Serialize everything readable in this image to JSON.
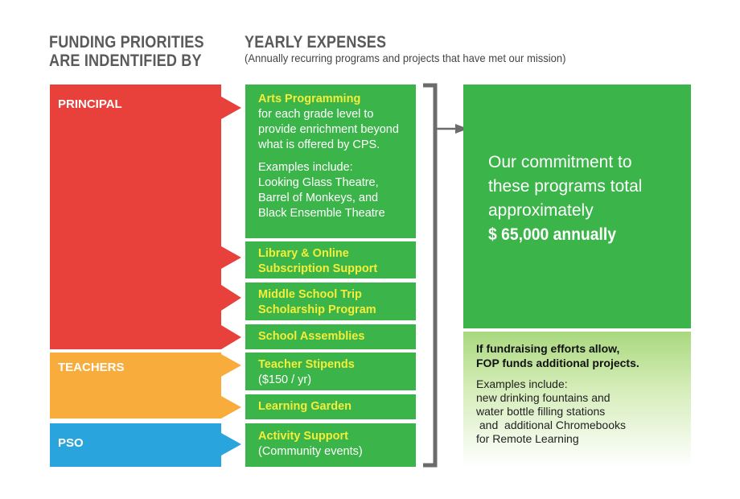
{
  "header": {
    "left_line1": "FUNDING PRIORITIES",
    "left_line2": "ARE INDENTIFIED BY",
    "right_title": "YEARLY EXPENSES",
    "right_subtitle": "(Annually recurring programs and projects that have met our mission)"
  },
  "sources": [
    {
      "label": "PRINCIPAL",
      "color": "#e8403a"
    },
    {
      "label": "TEACHERS",
      "color": "#f7ac3c"
    },
    {
      "label": "PSO",
      "color": "#2aa4dc"
    }
  ],
  "expenses": [
    {
      "title": "Arts Programming",
      "desc": [
        "for each grade level to",
        "provide enrichment beyond",
        "what is offered by CPS."
      ],
      "examples": [
        "Examples include:",
        "Looking Glass Theatre,",
        "Barrel of Monkeys, and",
        "Black Ensemble Theatre"
      ]
    },
    {
      "title_lines": [
        "Library & Online",
        "Subscription Support"
      ]
    },
    {
      "title_lines": [
        "Middle School Trip",
        "Scholarship Program"
      ]
    },
    {
      "title_lines": [
        "School Assemblies"
      ]
    },
    {
      "title": "Teacher Stipends",
      "desc": "($150 / yr)"
    },
    {
      "title_lines": [
        "Learning Garden"
      ]
    },
    {
      "title": "Activity Support",
      "desc": "(Community events)"
    }
  ],
  "commitment": {
    "lines": [
      "Our commitment to",
      "these programs total",
      "approximately"
    ],
    "amount": "$ 65,000 annually"
  },
  "additional": {
    "bold_lines": [
      "If fundraising efforts allow,",
      "FOP funds additional projects."
    ],
    "examples_lines": [
      "Examples include:",
      "new drinking fountains and",
      "water bottle filling stations",
      " and  additional Chromebooks",
      "for Remote Learning"
    ]
  },
  "colors": {
    "green": "#3bb54a",
    "yellow_text": "#f4ed3a",
    "bracket": "#6b6b6b"
  }
}
